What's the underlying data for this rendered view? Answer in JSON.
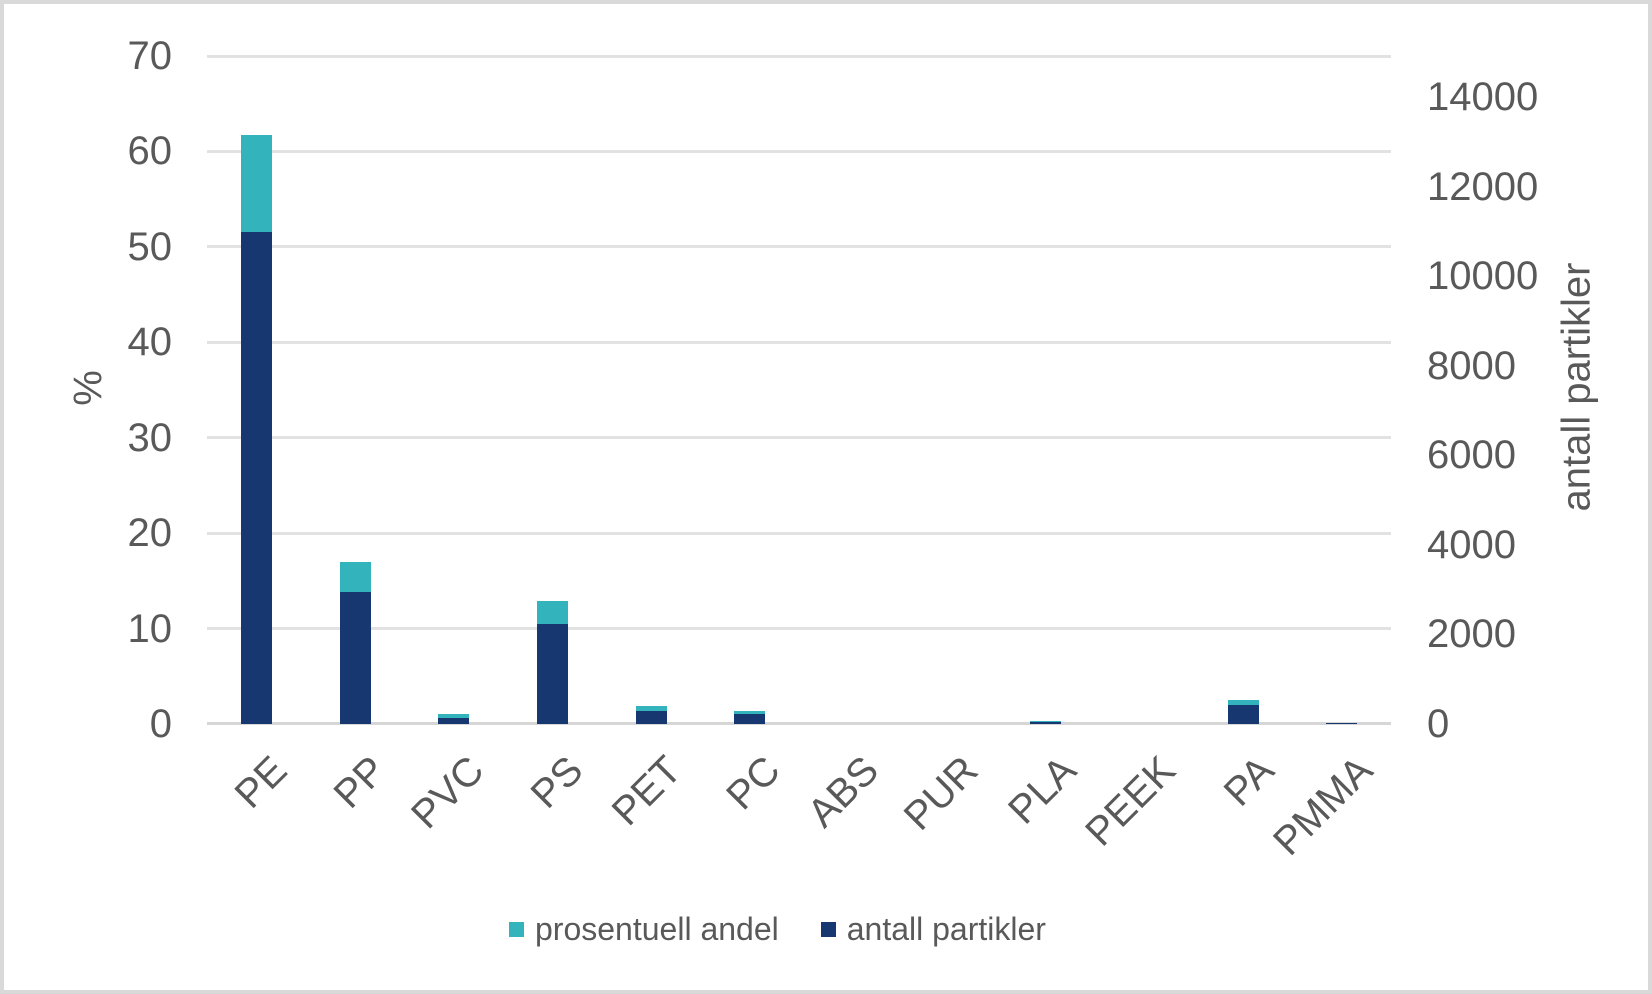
{
  "chart_data": {
    "type": "bar",
    "subtype": "dual-axis-overlapping-columns",
    "categories": [
      "PE",
      "PP",
      "PVC",
      "PS",
      "PET",
      "PC",
      "ABS",
      "PUR",
      "PLA",
      "PEEK",
      "PA",
      "PMMA"
    ],
    "series": [
      {
        "name": "prosentuell andel",
        "axis": "left",
        "color": "#33b4bc",
        "values": [
          61.7,
          17.0,
          1.1,
          12.9,
          1.9,
          1.4,
          0,
          0,
          0.3,
          0,
          2.5,
          0.15
        ]
      },
      {
        "name": "antall partikler",
        "axis": "right",
        "color": "#16376f",
        "values": [
          11000,
          2960,
          140,
          2240,
          290,
          220,
          0,
          0,
          47,
          0,
          420,
          25
        ]
      }
    ],
    "left_axis": {
      "label": "%",
      "range": [
        0,
        70
      ],
      "ticks": [
        "0",
        "10",
        "20",
        "30",
        "40",
        "50",
        "60",
        "70"
      ]
    },
    "right_axis": {
      "label": "antall partikler",
      "range": [
        0,
        14925
      ],
      "ticks": [
        "0",
        "2000",
        "4000",
        "6000",
        "8000",
        "10000",
        "12000",
        "14000"
      ]
    },
    "grid": true,
    "legend_position": "bottom",
    "colors": {
      "gridline": "#e2e2e2",
      "axis_line": "#d6d6d6",
      "text": "#595959",
      "frame_border": "#d9d9d9",
      "background": "#ffffff"
    }
  }
}
